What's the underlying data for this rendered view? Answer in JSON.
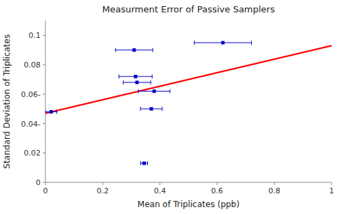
{
  "chart_data": {
    "type": "scatter",
    "title": "Measurment Error of Passive Samplers",
    "xlabel": "Mean of Triplicates (ppb)",
    "ylabel": "Standard Deviation of Triplicates",
    "xlim": [
      0,
      1.0
    ],
    "ylim": [
      0,
      0.11
    ],
    "xticks": [
      0,
      0.2,
      0.4,
      0.6,
      0.8,
      1
    ],
    "yticks": [
      0,
      0.02,
      {
        "value": 0.04,
        "label": "0.04-"
      },
      {
        "value": 0.06,
        "label": "0.06-"
      },
      0.08,
      0.1
    ],
    "grid": false,
    "series": [
      {
        "type": "line",
        "color": "#ff0000",
        "x": [
          0,
          1.0
        ],
        "values": [
          0.047,
          0.093
        ]
      },
      {
        "type": "scatter",
        "color": "#0000cc",
        "marker": "square",
        "x": [
          0.02,
          0.31,
          0.315,
          0.32,
          0.38,
          0.37,
          0.345,
          0.62
        ],
        "values": [
          0.048,
          0.09,
          0.072,
          0.068,
          0.062,
          0.05,
          0.013,
          0.095
        ],
        "xerr_lo": [
          0.02,
          0.065,
          0.058,
          0.048,
          0.055,
          0.038,
          0.012,
          0.1
        ],
        "xerr_hi": [
          0.02,
          0.065,
          0.058,
          0.048,
          0.055,
          0.038,
          0.012,
          0.1
        ]
      }
    ]
  }
}
